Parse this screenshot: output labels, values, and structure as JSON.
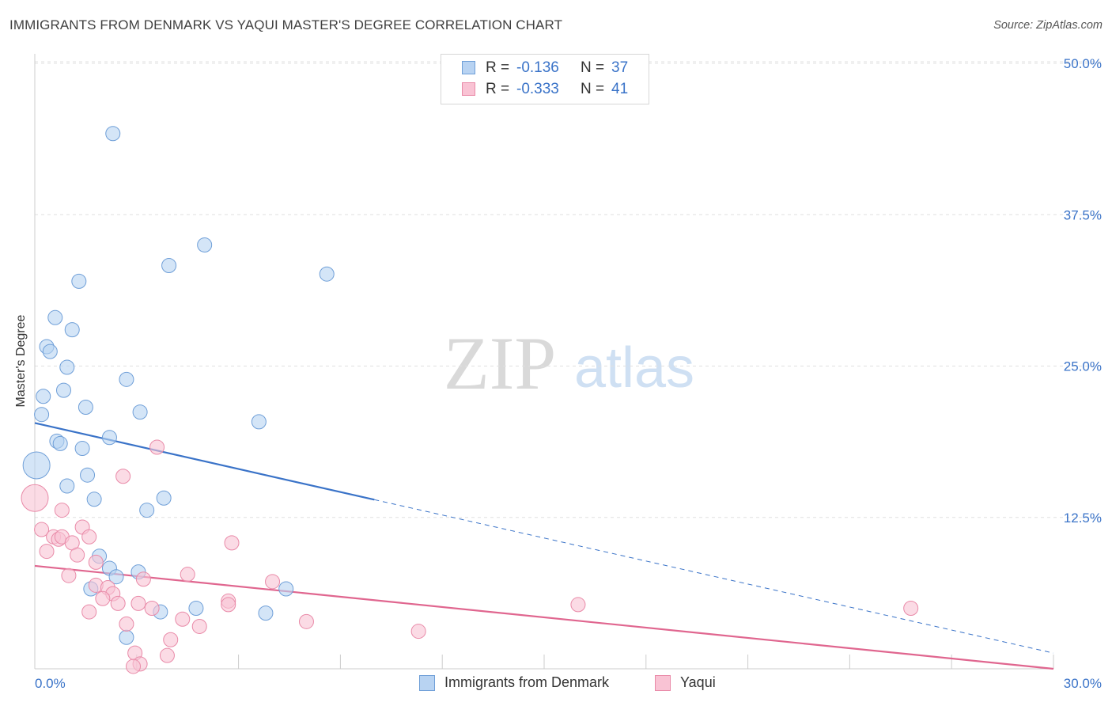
{
  "title": "IMMIGRANTS FROM DENMARK VS YAQUI MASTER'S DEGREE CORRELATION CHART",
  "source": "Source: ZipAtlas.com",
  "watermark": {
    "zip": "ZIP",
    "atlas": "atlas"
  },
  "legend": {
    "r_label": "R =",
    "n_label": "N =",
    "rows": [
      {
        "r": "-0.136",
        "n": "37"
      },
      {
        "r": "-0.333",
        "n": "41"
      }
    ]
  },
  "colors": {
    "denmark_fill": "#b8d3f2",
    "denmark_stroke": "#6f9fd8",
    "denmark_line": "#3a73c8",
    "yaqui_fill": "#f9c3d4",
    "yaqui_stroke": "#e98aa8",
    "yaqui_line": "#e0668f",
    "tick_text": "#3a73c8"
  },
  "chart_data": {
    "type": "scatter",
    "title": "IMMIGRANTS FROM DENMARK VS YAQUI MASTER'S DEGREE CORRELATION CHART",
    "xlabel": "",
    "ylabel": "Master's Degree",
    "xlim": [
      0,
      30
    ],
    "ylim": [
      0,
      50
    ],
    "x_tick_labels": [
      "0.0%",
      "30.0%"
    ],
    "y_ticks": [
      12.5,
      25.0,
      37.5,
      50.0
    ],
    "y_tick_labels": [
      "12.5%",
      "25.0%",
      "37.5%",
      "50.0%"
    ],
    "grid": true,
    "series": [
      {
        "name": "Immigrants from Denmark",
        "r": -0.136,
        "n": 37,
        "trend": {
          "x0": 0,
          "y0": 20.3,
          "x_solid_end": 10.0,
          "x1": 30,
          "y1": 1.3
        },
        "points": [
          [
            2.3,
            44.2
          ],
          [
            5.0,
            35.0
          ],
          [
            3.95,
            33.3
          ],
          [
            8.6,
            32.6
          ],
          [
            1.3,
            32.0
          ],
          [
            0.6,
            29.0
          ],
          [
            1.1,
            28.0
          ],
          [
            0.35,
            26.6
          ],
          [
            0.45,
            26.2
          ],
          [
            0.95,
            24.9
          ],
          [
            2.7,
            23.9
          ],
          [
            0.85,
            23.0
          ],
          [
            0.25,
            22.5
          ],
          [
            1.5,
            21.6
          ],
          [
            0.2,
            21.0
          ],
          [
            3.1,
            21.2
          ],
          [
            6.6,
            20.4
          ],
          [
            2.2,
            19.1
          ],
          [
            0.65,
            18.8
          ],
          [
            0.75,
            18.6
          ],
          [
            1.4,
            18.2
          ],
          [
            0.05,
            16.8
          ],
          [
            1.55,
            16.0
          ],
          [
            0.95,
            15.1
          ],
          [
            1.75,
            14.0
          ],
          [
            3.8,
            14.1
          ],
          [
            3.3,
            13.1
          ],
          [
            2.2,
            8.3
          ],
          [
            1.9,
            9.3
          ],
          [
            3.05,
            8.0
          ],
          [
            2.4,
            7.6
          ],
          [
            1.65,
            6.6
          ],
          [
            7.4,
            6.6
          ],
          [
            3.7,
            4.7
          ],
          [
            4.75,
            5.0
          ],
          [
            6.8,
            4.6
          ],
          [
            2.7,
            2.6
          ]
        ],
        "sizes": [
          18,
          18,
          18,
          18,
          18,
          18,
          18,
          18,
          18,
          18,
          18,
          18,
          18,
          18,
          18,
          18,
          18,
          18,
          18,
          18,
          18,
          34,
          18,
          18,
          18,
          18,
          18,
          18,
          18,
          18,
          18,
          18,
          18,
          18,
          18,
          18,
          18
        ]
      },
      {
        "name": "Yaqui",
        "r": -0.333,
        "n": 41,
        "trend": {
          "x0": 0,
          "y0": 8.5,
          "x_solid_end": 30,
          "x1": 30,
          "y1": 0.0
        },
        "points": [
          [
            3.6,
            18.3
          ],
          [
            2.6,
            15.9
          ],
          [
            0.0,
            14.1
          ],
          [
            0.8,
            13.1
          ],
          [
            0.2,
            11.5
          ],
          [
            1.4,
            11.7
          ],
          [
            0.55,
            10.9
          ],
          [
            0.7,
            10.7
          ],
          [
            0.8,
            10.9
          ],
          [
            1.6,
            10.9
          ],
          [
            5.8,
            10.4
          ],
          [
            1.1,
            10.4
          ],
          [
            0.35,
            9.7
          ],
          [
            1.25,
            9.4
          ],
          [
            1.8,
            8.8
          ],
          [
            4.5,
            7.8
          ],
          [
            1.0,
            7.7
          ],
          [
            3.2,
            7.4
          ],
          [
            7.0,
            7.2
          ],
          [
            1.8,
            6.9
          ],
          [
            2.15,
            6.7
          ],
          [
            2.3,
            6.2
          ],
          [
            2.0,
            5.8
          ],
          [
            5.7,
            5.6
          ],
          [
            2.45,
            5.4
          ],
          [
            3.05,
            5.4
          ],
          [
            5.7,
            5.3
          ],
          [
            16.0,
            5.3
          ],
          [
            25.8,
            5.0
          ],
          [
            3.45,
            5.0
          ],
          [
            1.6,
            4.7
          ],
          [
            4.35,
            4.1
          ],
          [
            8.0,
            3.9
          ],
          [
            2.7,
            3.7
          ],
          [
            4.85,
            3.5
          ],
          [
            11.3,
            3.1
          ],
          [
            4.0,
            2.4
          ],
          [
            2.95,
            1.3
          ],
          [
            3.9,
            1.1
          ],
          [
            3.1,
            0.4
          ],
          [
            2.9,
            0.2
          ]
        ],
        "sizes": [
          18,
          18,
          34,
          18,
          18,
          18,
          18,
          18,
          18,
          18,
          18,
          18,
          18,
          18,
          18,
          18,
          18,
          18,
          18,
          18,
          18,
          18,
          18,
          18,
          18,
          18,
          18,
          18,
          18,
          18,
          18,
          18,
          18,
          18,
          18,
          18,
          18,
          18,
          18,
          18,
          18
        ]
      }
    ]
  }
}
